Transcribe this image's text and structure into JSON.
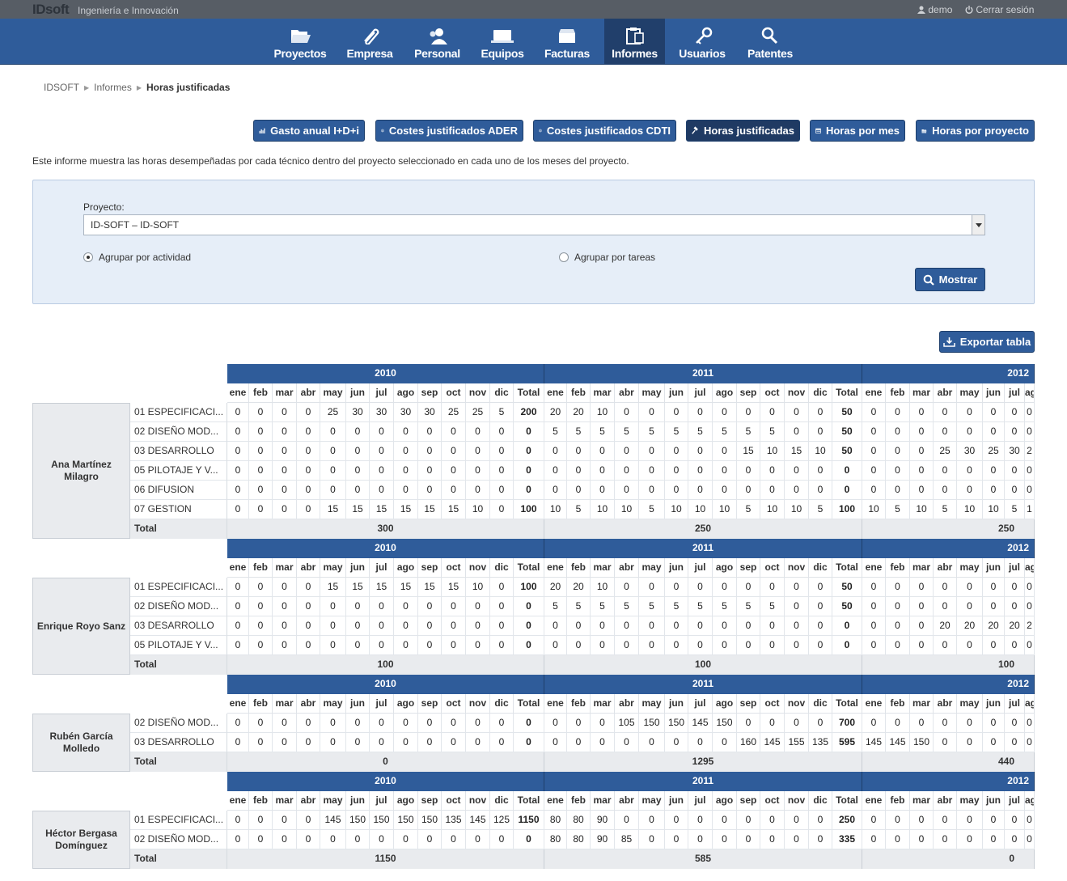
{
  "app": {
    "brand": "IDsoft",
    "tagline": "Ingeniería e Innovación",
    "user": "demo",
    "logout": "Cerrar sesión"
  },
  "nav": [
    {
      "label": "Proyectos",
      "icon": "folder-icon"
    },
    {
      "label": "Empresa",
      "icon": "paperclip-icon"
    },
    {
      "label": "Personal",
      "icon": "people-icon"
    },
    {
      "label": "Equipos",
      "icon": "laptop-icon"
    },
    {
      "label": "Facturas",
      "icon": "inbox-icon"
    },
    {
      "label": "Informes",
      "icon": "clipboard-icon",
      "active": true
    },
    {
      "label": "Usuarios",
      "icon": "key-icon"
    },
    {
      "label": "Patentes",
      "icon": "magnifier-icon"
    }
  ],
  "breadcrumb": {
    "root": "IDSOFT",
    "section": "Informes",
    "current": "Horas justificadas"
  },
  "report_buttons": [
    {
      "label": "Gasto anual I+D+i",
      "icon": "bar-chart-icon"
    },
    {
      "label": "Costes justificados ADER",
      "icon": "coin-icon"
    },
    {
      "label": "Costes justificados CDTI",
      "icon": "coin-icon"
    },
    {
      "label": "Horas justificadas",
      "icon": "hammer-icon",
      "active": true
    },
    {
      "label": "Horas por mes",
      "icon": "calendar-icon"
    },
    {
      "label": "Horas por proyecto",
      "icon": "folder-icon"
    }
  ],
  "description": "Este informe muestra las horas desempeñadas por cada técnico dentro del proyecto seleccionado en cada uno de los meses del proyecto.",
  "filter": {
    "project_label": "Proyecto:",
    "project_value": "ID-SOFT – ID-SOFT",
    "radio_activity": "Agrupar por actividad",
    "radio_tasks": "Agrupar por tareas",
    "selected": "activity",
    "show_button": "Mostrar"
  },
  "export_button": "Exportar tabla",
  "report": {
    "years": [
      "2010",
      "2011",
      "2012"
    ],
    "months": [
      "ene",
      "feb",
      "mar",
      "abr",
      "may",
      "jun",
      "jul",
      "ago",
      "sep",
      "oct",
      "nov",
      "dic"
    ],
    "total_label": "Total",
    "groups": [
      {
        "person": "Ana Martínez Milagro",
        "rows": [
          {
            "activity": "01 ESPECIFICACI...",
            "y2010": [
              "0",
              "0",
              "0",
              "0",
              "25",
              "30",
              "30",
              "30",
              "30",
              "25",
              "25",
              "5",
              "200"
            ],
            "y2011": [
              "20",
              "20",
              "10",
              "0",
              "0",
              "0",
              "0",
              "0",
              "0",
              "0",
              "0",
              "0",
              "50"
            ],
            "y2012": [
              "0",
              "0",
              "0",
              "0",
              "0",
              "0",
              "0",
              "0"
            ]
          },
          {
            "activity": "02 DISEÑO MOD...",
            "y2010": [
              "0",
              "0",
              "0",
              "0",
              "0",
              "0",
              "0",
              "0",
              "0",
              "0",
              "0",
              "0",
              "0"
            ],
            "y2011": [
              "5",
              "5",
              "5",
              "5",
              "5",
              "5",
              "5",
              "5",
              "5",
              "5",
              "0",
              "0",
              "50"
            ],
            "y2012": [
              "0",
              "0",
              "0",
              "0",
              "0",
              "0",
              "0",
              "0"
            ]
          },
          {
            "activity": "03 DESARROLLO",
            "y2010": [
              "0",
              "0",
              "0",
              "0",
              "0",
              "0",
              "0",
              "0",
              "0",
              "0",
              "0",
              "0",
              "0"
            ],
            "y2011": [
              "0",
              "0",
              "0",
              "0",
              "0",
              "0",
              "0",
              "0",
              "15",
              "10",
              "15",
              "10",
              "50"
            ],
            "y2012": [
              "0",
              "0",
              "0",
              "25",
              "30",
              "25",
              "30",
              "2"
            ]
          },
          {
            "activity": "05 PILOTAJE Y V...",
            "y2010": [
              "0",
              "0",
              "0",
              "0",
              "0",
              "0",
              "0",
              "0",
              "0",
              "0",
              "0",
              "0",
              "0"
            ],
            "y2011": [
              "0",
              "0",
              "0",
              "0",
              "0",
              "0",
              "0",
              "0",
              "0",
              "0",
              "0",
              "0",
              "0"
            ],
            "y2012": [
              "0",
              "0",
              "0",
              "0",
              "0",
              "0",
              "0",
              "0"
            ]
          },
          {
            "activity": "06 DIFUSION",
            "y2010": [
              "0",
              "0",
              "0",
              "0",
              "0",
              "0",
              "0",
              "0",
              "0",
              "0",
              "0",
              "0",
              "0"
            ],
            "y2011": [
              "0",
              "0",
              "0",
              "0",
              "0",
              "0",
              "0",
              "0",
              "0",
              "0",
              "0",
              "0",
              "0"
            ],
            "y2012": [
              "0",
              "0",
              "0",
              "0",
              "0",
              "0",
              "0",
              "0"
            ]
          },
          {
            "activity": "07 GESTION",
            "y2010": [
              "0",
              "0",
              "0",
              "0",
              "15",
              "15",
              "15",
              "15",
              "15",
              "15",
              "10",
              "0",
              "100"
            ],
            "y2011": [
              "10",
              "5",
              "10",
              "10",
              "5",
              "10",
              "10",
              "10",
              "5",
              "10",
              "10",
              "5",
              "100"
            ],
            "y2012": [
              "10",
              "5",
              "10",
              "5",
              "10",
              "10",
              "5",
              "1"
            ]
          }
        ],
        "totals": [
          "300",
          "250",
          "250"
        ]
      },
      {
        "person": "Enrique Royo Sanz",
        "rows": [
          {
            "activity": "01 ESPECIFICACI...",
            "y2010": [
              "0",
              "0",
              "0",
              "0",
              "15",
              "15",
              "15",
              "15",
              "15",
              "15",
              "10",
              "0",
              "100"
            ],
            "y2011": [
              "20",
              "20",
              "10",
              "0",
              "0",
              "0",
              "0",
              "0",
              "0",
              "0",
              "0",
              "0",
              "50"
            ],
            "y2012": [
              "0",
              "0",
              "0",
              "0",
              "0",
              "0",
              "0",
              "0"
            ]
          },
          {
            "activity": "02 DISEÑO MOD...",
            "y2010": [
              "0",
              "0",
              "0",
              "0",
              "0",
              "0",
              "0",
              "0",
              "0",
              "0",
              "0",
              "0",
              "0"
            ],
            "y2011": [
              "5",
              "5",
              "5",
              "5",
              "5",
              "5",
              "5",
              "5",
              "5",
              "5",
              "0",
              "0",
              "50"
            ],
            "y2012": [
              "0",
              "0",
              "0",
              "0",
              "0",
              "0",
              "0",
              "0"
            ]
          },
          {
            "activity": "03 DESARROLLO",
            "y2010": [
              "0",
              "0",
              "0",
              "0",
              "0",
              "0",
              "0",
              "0",
              "0",
              "0",
              "0",
              "0",
              "0"
            ],
            "y2011": [
              "0",
              "0",
              "0",
              "0",
              "0",
              "0",
              "0",
              "0",
              "0",
              "0",
              "0",
              "0",
              "0"
            ],
            "y2012": [
              "0",
              "0",
              "0",
              "20",
              "20",
              "20",
              "20",
              "2"
            ]
          },
          {
            "activity": "05 PILOTAJE Y V...",
            "y2010": [
              "0",
              "0",
              "0",
              "0",
              "0",
              "0",
              "0",
              "0",
              "0",
              "0",
              "0",
              "0",
              "0"
            ],
            "y2011": [
              "0",
              "0",
              "0",
              "0",
              "0",
              "0",
              "0",
              "0",
              "0",
              "0",
              "0",
              "0",
              "0"
            ],
            "y2012": [
              "0",
              "0",
              "0",
              "0",
              "0",
              "0",
              "0",
              "0"
            ]
          }
        ],
        "totals": [
          "100",
          "100",
          "100"
        ]
      },
      {
        "person": "Rubén García Molledo",
        "rows": [
          {
            "activity": "02 DISEÑO MOD...",
            "y2010": [
              "0",
              "0",
              "0",
              "0",
              "0",
              "0",
              "0",
              "0",
              "0",
              "0",
              "0",
              "0",
              "0"
            ],
            "y2011": [
              "0",
              "0",
              "0",
              "105",
              "150",
              "150",
              "145",
              "150",
              "0",
              "0",
              "0",
              "0",
              "700"
            ],
            "y2012": [
              "0",
              "0",
              "0",
              "0",
              "0",
              "0",
              "0",
              "0"
            ]
          },
          {
            "activity": "03 DESARROLLO",
            "y2010": [
              "0",
              "0",
              "0",
              "0",
              "0",
              "0",
              "0",
              "0",
              "0",
              "0",
              "0",
              "0",
              "0"
            ],
            "y2011": [
              "0",
              "0",
              "0",
              "0",
              "0",
              "0",
              "0",
              "0",
              "160",
              "145",
              "155",
              "135",
              "595"
            ],
            "y2012": [
              "145",
              "145",
              "150",
              "0",
              "0",
              "0",
              "0",
              "0"
            ]
          }
        ],
        "totals": [
          "0",
          "1295",
          "440"
        ]
      },
      {
        "person": "Héctor Bergasa Domínguez",
        "rows": [
          {
            "activity": "01 ESPECIFICACI...",
            "y2010": [
              "0",
              "0",
              "0",
              "0",
              "145",
              "150",
              "150",
              "150",
              "150",
              "135",
              "145",
              "125",
              "1150"
            ],
            "y2011": [
              "80",
              "80",
              "90",
              "0",
              "0",
              "0",
              "0",
              "0",
              "0",
              "0",
              "0",
              "0",
              "250"
            ],
            "y2012": [
              "0",
              "0",
              "0",
              "0",
              "0",
              "0",
              "0",
              "0"
            ]
          },
          {
            "activity": "02 DISEÑO MOD...",
            "y2010": [
              "0",
              "0",
              "0",
              "0",
              "0",
              "0",
              "0",
              "0",
              "0",
              "0",
              "0",
              "0",
              "0"
            ],
            "y2011": [
              "80",
              "80",
              "90",
              "85",
              "0",
              "0",
              "0",
              "0",
              "0",
              "0",
              "0",
              "0",
              "335"
            ],
            "y2012": [
              "0",
              "0",
              "0",
              "0",
              "0",
              "0",
              "0",
              "0"
            ]
          }
        ],
        "totals": [
          "1150",
          "585",
          "0"
        ]
      }
    ]
  }
}
